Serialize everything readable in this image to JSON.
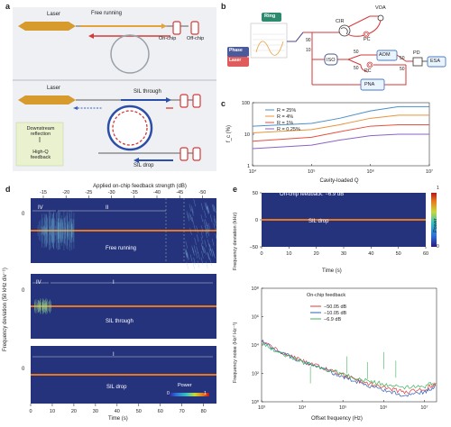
{
  "panels": {
    "a": {
      "label": "a",
      "top": {
        "laser": "Laser",
        "free_running": "Free running",
        "on_chip": "On-chip",
        "off_chip": "Off-chip"
      },
      "bottom": {
        "laser": "Laser",
        "sil_through": "SIL through",
        "sil_drop": "SIL drop",
        "downstream_reflection": "Downstream\nreflection",
        "highq_feedback": "High-Q\nfeedback"
      }
    },
    "b": {
      "label": "b",
      "ring": "Ring",
      "phase": "Phase",
      "laser": "Laser",
      "cir": "CIR",
      "voa": "VOA",
      "pc1": "PC",
      "pc2": "PC",
      "iso": "ISO",
      "aom": "AOM",
      "pd": "PD",
      "esa": "ESA",
      "pna": "PNA",
      "ratios": {
        "r90": "90",
        "r10": "10",
        "r50a": "50",
        "r50b": "50",
        "r50c": "50",
        "r50d": "50"
      }
    },
    "c": {
      "label": "c",
      "ylabel": "f_c (%)",
      "xlabel": "Cavity-loaded Q",
      "xticks": [
        "10⁴",
        "10⁵",
        "10⁶",
        "10⁷"
      ],
      "yticks": [
        "1",
        "10",
        "100"
      ],
      "legend": [
        "R = 25%",
        "R = 4%",
        "R = 1%",
        "R = 0.25%"
      ],
      "colors": [
        "#4a90c8",
        "#e8943a",
        "#e94f3c",
        "#8a63c4"
      ]
    },
    "d": {
      "label": "d",
      "top_axis_label": "Applied on-chip feedback strength (dB)",
      "top_ticks": [
        "-15",
        "-20",
        "-25",
        "-30",
        "-35",
        "-40",
        "-45",
        "-50"
      ],
      "ylabel": "Frequency deviation (50 kHz div⁻¹)",
      "xlabel": "Time (s)",
      "xticks": [
        "0",
        "10",
        "20",
        "30",
        "40",
        "50",
        "60",
        "70",
        "80"
      ],
      "y_zero": "0",
      "sub1": {
        "region_iv": "IV",
        "region_ii": "II",
        "title": "Free running"
      },
      "sub2": {
        "region_iv": "IV",
        "region_i": "I",
        "title": "SIL through"
      },
      "sub3": {
        "region_i": "I",
        "title": "SIL drop"
      },
      "colorbar": {
        "label": "Power",
        "min": "0",
        "max": "1"
      }
    },
    "e": {
      "label": "e",
      "top": {
        "title": "On-chip feedback: −6.9 dB",
        "sub": "SIL drop",
        "ylabel": "Frequency deviation (kHz)",
        "xlabel": "Time (s)",
        "yticks": [
          "50",
          "0",
          "−50"
        ],
        "xticks": [
          "0",
          "10",
          "20",
          "30",
          "40",
          "50",
          "60"
        ],
        "colorbar": {
          "label": "Power",
          "min": "0",
          "max": "1"
        }
      },
      "bottom": {
        "ylabel": "Frequency noise (Hz² Hz⁻¹)",
        "xlabel": "Offset frequency (Hz)",
        "yticks": [
          "10⁸",
          "10⁶",
          "10⁴",
          "10²",
          "10⁰"
        ],
        "xticks": [
          "10³",
          "10⁴",
          "10⁵",
          "10⁶",
          "10⁷"
        ],
        "legend_title": "On-chip feedback",
        "legend": [
          "−50.05 dB",
          "−10.05 dB",
          "−6.9 dB"
        ],
        "colors": [
          "#e23a3a",
          "#2e5fb8",
          "#3fb35a"
        ]
      }
    }
  },
  "chart_data": [
    {
      "type": "line",
      "title": "",
      "xlabel": "Cavity-loaded Q",
      "ylabel": "f_c (%)",
      "xscale": "log",
      "yscale": "log",
      "xlim": [
        10000,
        10000000
      ],
      "ylim": [
        1,
        100
      ],
      "series": [
        {
          "name": "R = 25%",
          "x": [
            10000,
            100000,
            300000,
            1000000,
            3000000,
            10000000
          ],
          "y": [
            18,
            22,
            32,
            55,
            75,
            75
          ]
        },
        {
          "name": "R = 4%",
          "x": [
            10000,
            100000,
            300000,
            1000000,
            3000000,
            10000000
          ],
          "y": [
            11,
            14,
            20,
            32,
            40,
            40
          ]
        },
        {
          "name": "R = 1%",
          "x": [
            10000,
            100000,
            300000,
            1000000,
            3000000,
            10000000
          ],
          "y": [
            6,
            8,
            12,
            18,
            20,
            20
          ]
        },
        {
          "name": "R = 0.25%",
          "x": [
            10000,
            100000,
            300000,
            1000000,
            3000000,
            10000000
          ],
          "y": [
            3.5,
            4.5,
            6.5,
            9,
            10,
            10
          ]
        }
      ]
    },
    {
      "type": "line",
      "title": "",
      "xlabel": "Offset frequency (Hz)",
      "ylabel": "Frequency noise (Hz² Hz⁻¹)",
      "xscale": "log",
      "yscale": "log",
      "xlim": [
        1000,
        20000000
      ],
      "ylim": [
        1,
        100000000
      ],
      "series": [
        {
          "name": "−50.05 dB",
          "x": [
            1000,
            3000,
            10000,
            30000,
            100000,
            300000,
            1000000,
            3000000,
            10000000,
            20000000
          ],
          "y": [
            20000,
            3000,
            800,
            250,
            80,
            25,
            10,
            5,
            8,
            20
          ]
        },
        {
          "name": "−10.05 dB",
          "x": [
            1000,
            3000,
            10000,
            30000,
            100000,
            300000,
            1000000,
            3000000,
            10000000,
            20000000
          ],
          "y": [
            18000,
            2800,
            700,
            200,
            60,
            18,
            7,
            3,
            5,
            15
          ]
        },
        {
          "name": "−6.9 dB",
          "x": [
            1000,
            3000,
            10000,
            30000,
            100000,
            300000,
            1000000,
            3000000,
            10000000,
            20000000
          ],
          "y": [
            15000,
            2500,
            650,
            230,
            90,
            35,
            18,
            10,
            12,
            25
          ]
        }
      ]
    }
  ]
}
